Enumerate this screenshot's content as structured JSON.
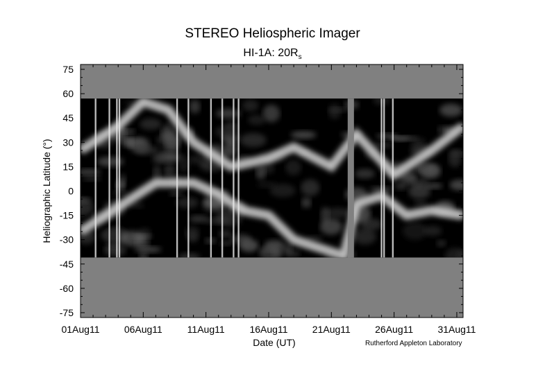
{
  "chart_data": {
    "type": "heatmap",
    "title": "STEREO Heliospheric Imager",
    "subtitle_prefix": "HI-1A: 20R",
    "subtitle_sub": "s",
    "xlabel": "Date (UT)",
    "ylabel": "Heliographic Latitude (°)",
    "credit": "Rutherford Appleton Laboratory",
    "x_ticks": [
      "01Aug11",
      "06Aug11",
      "11Aug11",
      "16Aug11",
      "21Aug11",
      "26Aug11",
      "31Aug11"
    ],
    "x_tick_days": [
      0,
      5,
      10,
      15,
      20,
      25,
      30
    ],
    "x_range_days": [
      0,
      30.5
    ],
    "y_ticks": [
      75,
      60,
      45,
      30,
      15,
      0,
      -15,
      -30,
      -45,
      -60,
      -75
    ],
    "ylim": [
      -78,
      78
    ],
    "data_lat_range": [
      -41,
      57
    ],
    "data_gaps_days": [
      [
        21.3,
        21.8
      ]
    ],
    "bright_streaks_days": [
      1.2,
      2.3,
      2.9,
      3.1,
      7.7,
      8.6,
      10.4,
      11.3,
      12.2,
      12.6,
      24.0,
      24.2,
      24.9
    ],
    "bright_bands": [
      {
        "name": "southern",
        "points": [
          [
            0,
            -25
          ],
          [
            3,
            -10
          ],
          [
            6,
            5
          ],
          [
            9,
            5
          ],
          [
            11,
            -2
          ],
          [
            13,
            -12
          ],
          [
            15,
            -15
          ],
          [
            17,
            -30
          ],
          [
            19,
            -35
          ],
          [
            21,
            -40
          ],
          [
            22,
            -8
          ],
          [
            24,
            -3
          ],
          [
            26,
            -15
          ],
          [
            28,
            -12
          ],
          [
            30.5,
            -15
          ]
        ]
      },
      {
        "name": "northern",
        "points": [
          [
            0,
            25
          ],
          [
            3,
            40
          ],
          [
            5,
            55
          ],
          [
            7,
            50
          ],
          [
            9,
            30
          ],
          [
            12,
            15
          ],
          [
            15,
            20
          ],
          [
            17,
            27
          ],
          [
            20,
            15
          ],
          [
            22,
            35
          ],
          [
            25,
            10
          ],
          [
            28,
            25
          ],
          [
            30.5,
            40
          ]
        ]
      }
    ],
    "colors": {
      "background": "#ffffff",
      "no_data": "#808080",
      "axis": "#000000"
    },
    "colormap": "grayscale"
  }
}
